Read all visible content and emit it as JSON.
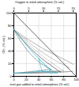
{
  "chart_data": {
    "type": "line",
    "title": "Oxygen in initial atmosphere (% vol.)",
    "xlabel": "inert gas added to initial atmosphere (% vol.)",
    "ylabel": "CH₄ (% vol.)",
    "xlim": [
      0,
      100
    ],
    "ylim": [
      0,
      100
    ],
    "xticks": [
      0,
      20,
      40,
      60,
      80,
      100
    ],
    "yticks": [
      0,
      20,
      40,
      60,
      80,
      100
    ],
    "x2lim": [
      0,
      21
    ],
    "x2ticks": [
      0,
      5,
      10,
      15,
      20
    ],
    "grid": true,
    "series": [
      {
        "color": "#333333",
        "line_style": "solid",
        "x": [
          0,
          10,
          20,
          30,
          40,
          50,
          60,
          70,
          75
        ],
        "values": [
          74,
          62,
          51,
          41,
          32,
          24,
          17,
          10,
          7
        ]
      },
      {
        "color": "#333333",
        "line_style": "solid",
        "x": [
          0,
          10,
          20,
          30,
          40,
          50,
          60,
          70,
          75
        ],
        "values": [
          5,
          5.2,
          5.5,
          6,
          6.5,
          7,
          7.5,
          8,
          7
        ]
      },
      {
        "color": "#555555",
        "line_style": "dashed",
        "x": [
          0,
          5,
          10,
          15,
          20,
          25,
          30,
          35,
          40,
          45,
          50,
          55,
          60
        ],
        "values": [
          74,
          65,
          57,
          50,
          43,
          37,
          32,
          27,
          23,
          19,
          16,
          13,
          10
        ]
      },
      {
        "color": "#555555",
        "line_style": "dashed",
        "x": [
          0,
          5,
          10,
          15,
          20,
          25,
          30,
          35,
          40,
          45,
          50,
          55,
          60
        ],
        "values": [
          5,
          5.3,
          5.7,
          6.2,
          6.8,
          7.3,
          7.8,
          8.3,
          8.8,
          9.3,
          10,
          11,
          10
        ]
      },
      {
        "color": "#777777",
        "line_style": "dotted",
        "x": [
          0,
          10,
          20,
          30,
          40,
          50,
          60,
          70,
          80,
          90,
          95
        ],
        "values": [
          74,
          67,
          60,
          54,
          48,
          42,
          37,
          32,
          27,
          22,
          19
        ]
      },
      {
        "color": "#777777",
        "line_style": "dotted",
        "x": [
          0,
          10,
          20,
          30,
          40,
          50,
          60,
          70,
          80,
          90,
          95
        ],
        "values": [
          5,
          5,
          5,
          5,
          5,
          5.5,
          6,
          6.5,
          7,
          7.5,
          8
        ]
      },
      {
        "color": "#999999",
        "line_style": "dashdot",
        "x": [
          0,
          10,
          20,
          30,
          40,
          50,
          60,
          70,
          80,
          90
        ],
        "values": [
          74,
          65,
          57,
          49,
          42,
          35,
          29,
          23,
          18,
          13
        ]
      },
      {
        "color": "#999999",
        "line_style": "dashdot",
        "x": [
          0,
          10,
          20,
          30,
          40,
          50,
          60,
          70,
          80,
          90
        ],
        "values": [
          5,
          5,
          5,
          5,
          5.2,
          5.5,
          6,
          6.5,
          7,
          7.5
        ]
      },
      {
        "color": "#aaaaaa",
        "line_style": "dashed",
        "x": [
          0,
          10,
          20,
          30,
          40,
          50,
          60,
          70,
          80
        ],
        "values": [
          74,
          64,
          54,
          45,
          37,
          29,
          22,
          15,
          9
        ]
      },
      {
        "color": "#aaaaaa",
        "line_style": "dashed",
        "x": [
          0,
          10,
          20,
          30,
          40,
          50,
          60,
          70,
          80
        ],
        "values": [
          5,
          5.2,
          5.5,
          6,
          6.5,
          7,
          7.8,
          8.5,
          9
        ]
      },
      {
        "color": "#00b0d0",
        "line_style": "solid",
        "x": [
          0,
          5,
          10,
          15,
          20,
          25,
          30,
          35,
          40,
          45,
          50,
          55,
          60,
          55,
          50,
          45,
          40,
          35,
          30,
          25,
          20,
          15,
          10,
          5,
          0
        ],
        "values": [
          74,
          68,
          62,
          56,
          50,
          44,
          38,
          33,
          28,
          23,
          18,
          14,
          10,
          8,
          8,
          8,
          8,
          7,
          7,
          6,
          6,
          5.5,
          5.2,
          5,
          5
        ]
      },
      {
        "color": "#00b0d0",
        "line_style": "dashed",
        "x": [
          40,
          45,
          50,
          55,
          60,
          65,
          70,
          65,
          60,
          55,
          50,
          45,
          40
        ],
        "values": [
          28,
          23,
          18,
          14,
          10,
          7,
          5,
          5,
          5,
          6,
          7,
          8,
          28
        ]
      },
      {
        "color": "#000000",
        "line_style": "solid",
        "x": [
          0,
          100
        ],
        "values": [
          100,
          0
        ]
      }
    ]
  }
}
